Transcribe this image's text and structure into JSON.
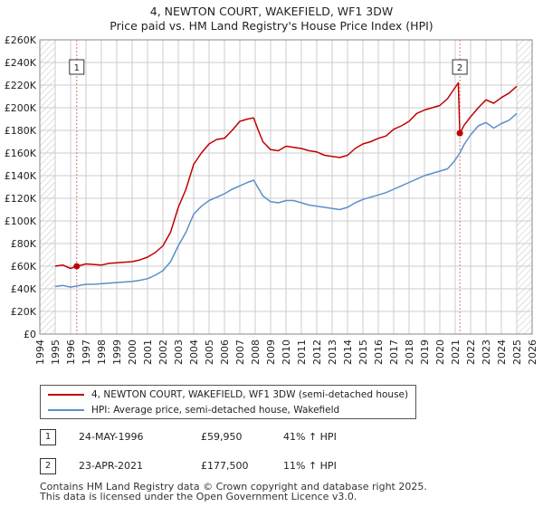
{
  "title": "4, NEWTON COURT, WAKEFIELD, WF1 3DW",
  "subtitle": "Price paid vs. HM Land Registry's House Price Index (HPI)",
  "colors": {
    "property": "#c00000",
    "hpi": "#5b8fc9",
    "grid": "#cccccc",
    "marker_line": "#e07070",
    "hatch": "#999999"
  },
  "legend": {
    "property": "4, NEWTON COURT, WAKEFIELD, WF1 3DW (semi-detached house)",
    "hpi": "HPI: Average price, semi-detached house, Wakefield"
  },
  "sales": [
    {
      "num": "1",
      "date": "24-MAY-1996",
      "price": "£59,950",
      "hpi": "41% ↑ HPI"
    },
    {
      "num": "2",
      "date": "23-APR-2021",
      "price": "£177,500",
      "hpi": "11% ↑ HPI"
    }
  ],
  "footer": [
    "Contains HM Land Registry data © Crown copyright and database right 2025.",
    "This data is licensed under the Open Government Licence v3.0."
  ],
  "chart_data": {
    "type": "line",
    "x_label": "",
    "y_label": "",
    "xlim": [
      1994,
      2026
    ],
    "ylim": [
      0,
      260000
    ],
    "x_ticks": [
      "1994",
      "1995",
      "1996",
      "1997",
      "1998",
      "1999",
      "2000",
      "2001",
      "2002",
      "2003",
      "2004",
      "2005",
      "2006",
      "2007",
      "2008",
      "2009",
      "2010",
      "2011",
      "2012",
      "2013",
      "2014",
      "2015",
      "2016",
      "2017",
      "2018",
      "2019",
      "2020",
      "2021",
      "2022",
      "2023",
      "2024",
      "2025",
      "2026"
    ],
    "y_ticks": [
      "£0",
      "£20K",
      "£40K",
      "£60K",
      "£80K",
      "£100K",
      "£120K",
      "£140K",
      "£160K",
      "£180K",
      "£200K",
      "£220K",
      "£240K",
      "£260K"
    ],
    "grid": true,
    "hatched_ranges": [
      [
        1994,
        1995.0
      ],
      [
        2025.0,
        2026
      ]
    ],
    "sale_markers": [
      {
        "label": "1",
        "x": 1996.4,
        "y": 59950
      },
      {
        "label": "2",
        "x": 2021.3,
        "y": 177500
      }
    ],
    "series": [
      {
        "name": "4, NEWTON COURT, WAKEFIELD, WF1 3DW (semi-detached house)",
        "x": [
          1995.0,
          1995.5,
          1996.0,
          1996.4,
          1997.0,
          1997.5,
          1998.0,
          1998.5,
          1999.0,
          1999.5,
          2000.0,
          2000.5,
          2001.0,
          2001.5,
          2002.0,
          2002.5,
          2003.0,
          2003.5,
          2004.0,
          2004.5,
          2005.0,
          2005.5,
          2006.0,
          2006.5,
          2007.0,
          2007.5,
          2007.9,
          2008.2,
          2008.5,
          2009.0,
          2009.5,
          2010.0,
          2010.5,
          2011.0,
          2011.5,
          2012.0,
          2012.5,
          2013.0,
          2013.5,
          2014.0,
          2014.5,
          2015.0,
          2015.5,
          2016.0,
          2016.5,
          2017.0,
          2017.5,
          2018.0,
          2018.5,
          2019.0,
          2019.5,
          2020.0,
          2020.5,
          2020.9,
          2021.2,
          2021.3,
          2021.6,
          2022.0,
          2022.5,
          2023.0,
          2023.5,
          2024.0,
          2024.5,
          2025.0
        ],
        "y": [
          60000,
          61000,
          58000,
          59950,
          62000,
          61500,
          61000,
          62500,
          63000,
          63500,
          64000,
          65500,
          68000,
          72000,
          78000,
          90000,
          112000,
          128000,
          150000,
          160000,
          168000,
          172000,
          173000,
          180000,
          188000,
          190000,
          191000,
          180000,
          170000,
          163000,
          162000,
          166000,
          165000,
          164000,
          162000,
          161000,
          158000,
          157000,
          156000,
          158000,
          164000,
          168000,
          170000,
          173000,
          175000,
          181000,
          184000,
          188000,
          195000,
          198000,
          200000,
          202000,
          208000,
          216000,
          222000,
          177500,
          185000,
          192000,
          200000,
          207000,
          204000,
          209000,
          213000,
          219000
        ]
      },
      {
        "name": "HPI: Average price, semi-detached house, Wakefield",
        "x": [
          1995.0,
          1995.5,
          1996.0,
          1996.4,
          1997.0,
          1997.5,
          1998.0,
          1998.5,
          1999.0,
          1999.5,
          2000.0,
          2000.5,
          2001.0,
          2001.5,
          2002.0,
          2002.5,
          2003.0,
          2003.5,
          2004.0,
          2004.5,
          2005.0,
          2005.5,
          2006.0,
          2006.5,
          2007.0,
          2007.5,
          2007.9,
          2008.2,
          2008.5,
          2009.0,
          2009.5,
          2010.0,
          2010.5,
          2011.0,
          2011.5,
          2012.0,
          2012.5,
          2013.0,
          2013.5,
          2014.0,
          2014.5,
          2015.0,
          2015.5,
          2016.0,
          2016.5,
          2017.0,
          2017.5,
          2018.0,
          2018.5,
          2019.0,
          2019.5,
          2020.0,
          2020.5,
          2020.9,
          2021.3,
          2021.6,
          2022.0,
          2022.5,
          2023.0,
          2023.5,
          2024.0,
          2024.5,
          2025.0
        ],
        "y": [
          42000,
          43000,
          41500,
          42500,
          44000,
          44000,
          44500,
          45000,
          45500,
          46000,
          46500,
          47500,
          49000,
          52000,
          56000,
          64000,
          78000,
          90000,
          106000,
          113000,
          118000,
          121000,
          124000,
          128000,
          131000,
          134000,
          136000,
          129000,
          122000,
          117000,
          116000,
          118000,
          118000,
          116000,
          114000,
          113000,
          112000,
          111000,
          110000,
          112000,
          116000,
          119000,
          121000,
          123000,
          125000,
          128000,
          131000,
          134000,
          137000,
          140000,
          142000,
          144000,
          146000,
          152000,
          160000,
          168000,
          176000,
          184000,
          187000,
          182000,
          186000,
          189000,
          195000
        ]
      }
    ]
  }
}
